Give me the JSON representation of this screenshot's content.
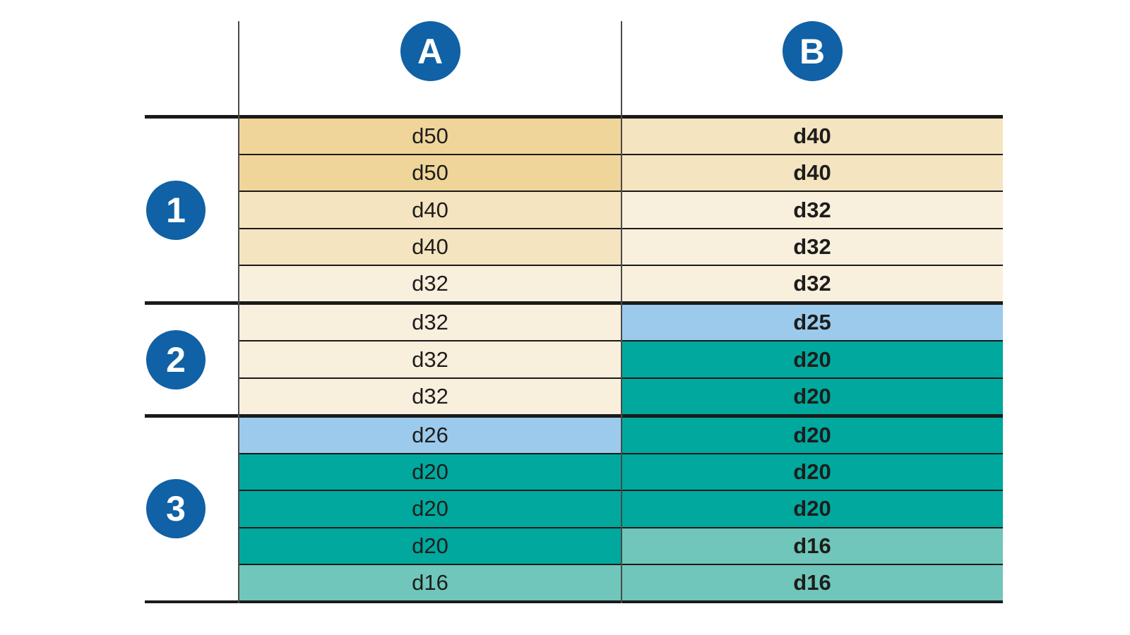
{
  "palette": {
    "circle_blue": "#1061a5",
    "rule_dark": "#1a1a1a",
    "text_dark": "#1d1d1b",
    "value_colors": {
      "d50": "#f0d59a",
      "d40": "#f4e4c0",
      "d32": "#f9efdd",
      "d26": "#9ccaec",
      "d25": "#9ccaec",
      "d20": "#00a89e",
      "d16": "#70c6ba"
    }
  },
  "columns": [
    {
      "id": "A",
      "label": "A"
    },
    {
      "id": "B",
      "label": "B"
    }
  ],
  "groups": [
    {
      "label": "1",
      "rows": [
        {
          "a": "d50",
          "b": "d40"
        },
        {
          "a": "d50",
          "b": "d40"
        },
        {
          "a": "d40",
          "b": "d32"
        },
        {
          "a": "d40",
          "b": "d32"
        },
        {
          "a": "d32",
          "b": "d32"
        }
      ]
    },
    {
      "label": "2",
      "rows": [
        {
          "a": "d32",
          "b": "d25"
        },
        {
          "a": "d32",
          "b": "d20"
        },
        {
          "a": "d32",
          "b": "d20"
        }
      ]
    },
    {
      "label": "3",
      "rows": [
        {
          "a": "d26",
          "b": "d20"
        },
        {
          "a": "d20",
          "b": "d20"
        },
        {
          "a": "d20",
          "b": "d20"
        },
        {
          "a": "d20",
          "b": "d16"
        },
        {
          "a": "d16",
          "b": "d16"
        }
      ]
    }
  ]
}
